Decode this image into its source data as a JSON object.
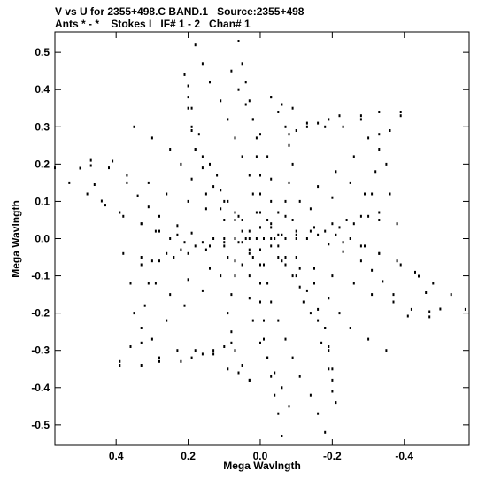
{
  "header": {
    "line1": "V vs U for 2355+498.C BAND.1   Source:2355+498",
    "line2": "Ants * - *    Stokes I   IF# 1 - 2   Chan# 1"
  },
  "chart_data": {
    "type": "scatter",
    "title": "V vs U for 2355+498.C BAND.1   Source:2355+498",
    "subtitle": "Ants * - *    Stokes I   IF# 1 - 2   Chan# 1",
    "xlabel": "Mega Wavlngth",
    "ylabel": "Mega Wavlngth",
    "xlim": [
      0.57,
      -0.58
    ],
    "ylim": [
      -0.555,
      0.555
    ],
    "x_ticks": [
      {
        "value": 0.4,
        "label": "0.4"
      },
      {
        "value": 0.2,
        "label": "0.2"
      },
      {
        "value": 0.0,
        "label": "0.0"
      },
      {
        "value": -0.2,
        "label": "-0.2"
      },
      {
        "value": -0.4,
        "label": "-0.4"
      }
    ],
    "y_ticks": [
      {
        "value": 0.5,
        "label": "0.5"
      },
      {
        "value": 0.4,
        "label": "0.4"
      },
      {
        "value": 0.3,
        "label": "0.3"
      },
      {
        "value": 0.2,
        "label": "0.2"
      },
      {
        "value": 0.1,
        "label": "0.1"
      },
      {
        "value": 0.0,
        "label": "0.0"
      },
      {
        "value": -0.1,
        "label": "-0.1"
      },
      {
        "value": -0.2,
        "label": "-0.2"
      },
      {
        "value": -0.3,
        "label": "-0.3"
      },
      {
        "value": -0.4,
        "label": "-0.4"
      },
      {
        "value": -0.5,
        "label": "-0.5"
      }
    ],
    "grid": false,
    "marker_color": "#000000",
    "series": [
      {
        "name": "",
        "points": [
          [
            0.5,
            0.189
          ],
          [
            0.47,
            0.196
          ],
          [
            0.46,
            0.145
          ],
          [
            0.41,
            0.208
          ],
          [
            0.44,
            0.101
          ],
          [
            0.37,
            0.15
          ],
          [
            0.39,
            0.07
          ],
          [
            0.34,
            0.115
          ],
          [
            0.33,
            0.04
          ],
          [
            0.31,
            0.085
          ],
          [
            0.29,
            0.02
          ],
          [
            0.28,
            0.06
          ],
          [
            0.25,
            0.0
          ],
          [
            0.23,
            0.035
          ],
          [
            0.21,
            -0.01
          ],
          [
            0.19,
            0.015
          ],
          [
            0.16,
            -0.01
          ],
          [
            0.13,
            0.0
          ],
          [
            0.1,
            0.0
          ],
          [
            0.07,
            0.0
          ],
          [
            0.04,
            0.0
          ],
          [
            0.01,
            0.0
          ],
          [
            0.19,
            0.3
          ],
          [
            0.2,
            0.38
          ],
          [
            0.21,
            0.44
          ],
          [
            0.19,
            0.35
          ],
          [
            0.17,
            0.28
          ],
          [
            0.18,
            0.24
          ],
          [
            0.16,
            0.22
          ],
          [
            0.14,
            0.2
          ],
          [
            0.12,
            0.17
          ],
          [
            0.11,
            0.13
          ],
          [
            0.09,
            0.1
          ],
          [
            0.07,
            0.07
          ],
          [
            0.05,
            0.05
          ],
          [
            0.03,
            0.02
          ],
          [
            0.06,
            0.53
          ],
          [
            0.05,
            0.47
          ],
          [
            0.04,
            0.42
          ],
          [
            0.03,
            0.37
          ],
          [
            0.02,
            0.32
          ],
          [
            0.01,
            0.27
          ],
          [
            0.01,
            0.22
          ],
          [
            0.0,
            0.17
          ],
          [
            0.0,
            0.12
          ],
          [
            0.0,
            0.07
          ],
          [
            0.0,
            0.03
          ],
          [
            -0.03,
            0.38
          ],
          [
            -0.05,
            0.34
          ],
          [
            -0.07,
            0.3
          ],
          [
            -0.08,
            0.28
          ],
          [
            -0.08,
            0.25
          ],
          [
            -0.09,
            0.2
          ],
          [
            -0.08,
            0.15
          ],
          [
            -0.07,
            0.1
          ],
          [
            -0.05,
            0.07
          ],
          [
            -0.03,
            0.04
          ],
          [
            -0.1,
            0.29
          ],
          [
            -0.13,
            0.3
          ],
          [
            -0.16,
            0.31
          ],
          [
            -0.19,
            0.32
          ],
          [
            -0.22,
            0.33
          ],
          [
            -0.28,
            0.32
          ],
          [
            -0.33,
            0.34
          ],
          [
            -0.39,
            0.33
          ],
          [
            -0.33,
            0.28
          ],
          [
            -0.35,
            0.2
          ],
          [
            -0.36,
            0.12
          ],
          [
            -0.38,
            0.04
          ],
          [
            -0.33,
            0.07
          ],
          [
            -0.3,
            0.06
          ],
          [
            -0.26,
            0.04
          ],
          [
            -0.22,
            0.03
          ],
          [
            -0.18,
            0.02
          ],
          [
            -0.14,
            0.02
          ],
          [
            -0.1,
            0.01
          ],
          [
            -0.06,
            0.01
          ],
          [
            -0.03,
            0.0
          ],
          [
            -0.57,
            -0.19
          ],
          [
            -0.53,
            -0.15
          ],
          [
            -0.48,
            -0.12
          ],
          [
            -0.43,
            -0.09
          ],
          [
            -0.38,
            -0.06
          ],
          [
            -0.33,
            -0.04
          ],
          [
            -0.28,
            -0.02
          ],
          [
            -0.23,
            -0.01
          ],
          [
            -0.47,
            -0.21
          ],
          [
            -0.42,
            -0.19
          ],
          [
            -0.37,
            -0.17
          ],
          [
            -0.31,
            -0.15
          ],
          [
            -0.26,
            -0.12
          ],
          [
            -0.2,
            -0.1
          ],
          [
            -0.15,
            -0.08
          ],
          [
            -0.1,
            -0.05
          ],
          [
            -0.05,
            -0.02
          ],
          [
            -0.35,
            -0.3
          ],
          [
            -0.3,
            -0.27
          ],
          [
            -0.25,
            -0.24
          ],
          [
            -0.22,
            -0.2
          ],
          [
            -0.19,
            -0.16
          ],
          [
            -0.15,
            -0.12
          ],
          [
            -0.11,
            -0.08
          ],
          [
            -0.07,
            -0.05
          ],
          [
            -0.2,
            -0.41
          ],
          [
            -0.2,
            -0.35
          ],
          [
            -0.19,
            -0.29
          ],
          [
            -0.18,
            -0.24
          ],
          [
            -0.16,
            -0.19
          ],
          [
            -0.13,
            -0.14
          ],
          [
            -0.1,
            -0.1
          ],
          [
            -0.06,
            -0.06
          ],
          [
            -0.18,
            -0.52
          ],
          [
            -0.16,
            -0.47
          ],
          [
            -0.14,
            -0.42
          ],
          [
            -0.11,
            -0.37
          ],
          [
            -0.09,
            -0.32
          ],
          [
            -0.07,
            -0.27
          ],
          [
            -0.05,
            -0.22
          ],
          [
            -0.03,
            -0.17
          ],
          [
            -0.02,
            -0.12
          ],
          [
            -0.01,
            -0.07
          ],
          [
            0.0,
            -0.03
          ],
          [
            -0.08,
            -0.45
          ],
          [
            -0.06,
            -0.4
          ],
          [
            -0.04,
            -0.36
          ],
          [
            -0.02,
            -0.32
          ],
          [
            0.0,
            -0.28
          ],
          [
            0.02,
            -0.22
          ],
          [
            0.03,
            -0.16
          ],
          [
            0.03,
            -0.1
          ],
          [
            0.02,
            -0.05
          ],
          [
            0.03,
            -0.38
          ],
          [
            0.06,
            -0.36
          ],
          [
            0.09,
            -0.35
          ],
          [
            0.13,
            -0.31
          ],
          [
            0.18,
            -0.3
          ],
          [
            0.23,
            -0.3
          ],
          [
            0.28,
            -0.33
          ],
          [
            0.39,
            -0.34
          ],
          [
            0.36,
            -0.29
          ],
          [
            0.33,
            -0.24
          ],
          [
            0.32,
            -0.18
          ],
          [
            0.31,
            -0.12
          ],
          [
            0.28,
            -0.06
          ],
          [
            0.24,
            -0.05
          ],
          [
            0.2,
            -0.04
          ],
          [
            0.15,
            -0.03
          ],
          [
            0.1,
            -0.02
          ],
          [
            0.05,
            -0.01
          ],
          [
            0.3,
            -0.27
          ],
          [
            0.26,
            -0.22
          ],
          [
            0.21,
            -0.18
          ],
          [
            0.16,
            -0.14
          ],
          [
            0.11,
            -0.1
          ],
          [
            0.07,
            -0.06
          ],
          [
            0.03,
            -0.03
          ],
          [
            0.33,
            -0.05
          ],
          [
            0.29,
            -0.12
          ],
          [
            0.25,
            -0.15
          ],
          [
            0.2,
            -0.11
          ],
          [
            0.14,
            -0.08
          ],
          [
            0.09,
            -0.05
          ]
        ]
      }
    ]
  }
}
